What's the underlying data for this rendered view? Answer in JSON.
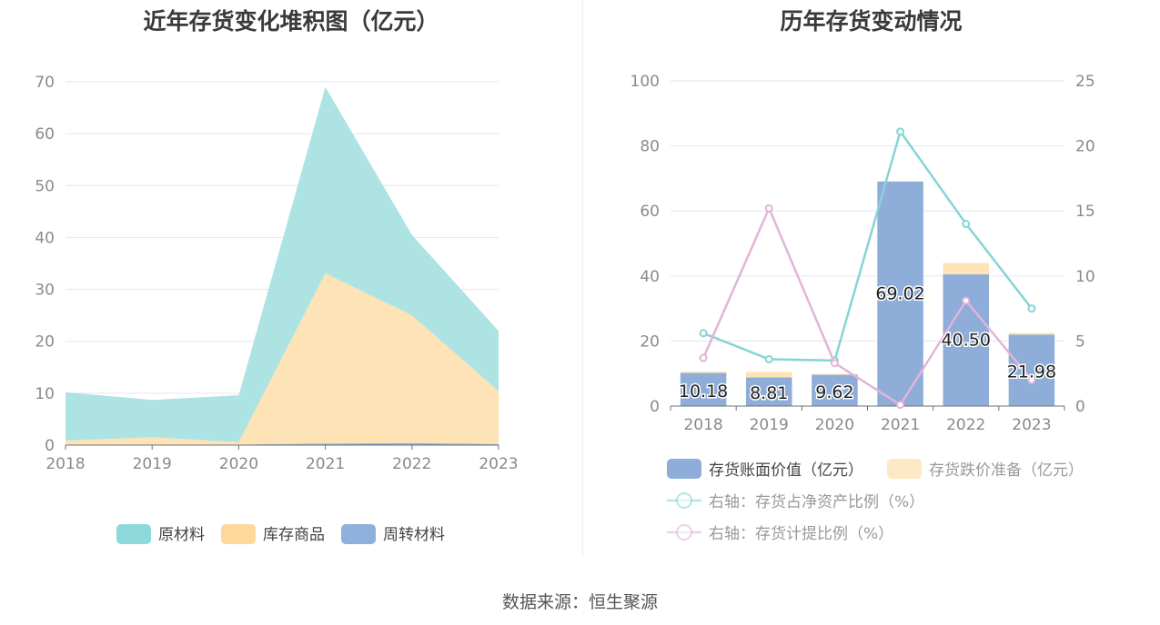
{
  "charts": {
    "left_title": "近年存货变化堆积图（亿元）",
    "right_title": "历年存货变动情况"
  },
  "source": "数据来源：恒生聚源",
  "chart_data": [
    {
      "type": "area",
      "title": "近年存货变化堆积图（亿元）",
      "stacked": true,
      "categories": [
        "2018",
        "2019",
        "2020",
        "2021",
        "2022",
        "2023"
      ],
      "ylim": [
        0,
        70
      ],
      "yticks": [
        0,
        10,
        20,
        30,
        40,
        50,
        60,
        70
      ],
      "grid": true,
      "legend_position": "bottom",
      "series": [
        {
          "name": "周转材料",
          "color": "#8fb0dc",
          "values": [
            0.1,
            0.1,
            0.1,
            0.3,
            0.4,
            0.2
          ]
        },
        {
          "name": "库存商品",
          "color": "#fde3b5",
          "values": [
            0.8,
            1.4,
            0.5,
            32.8,
            24.6,
            10.2
          ]
        },
        {
          "name": "原材料",
          "color": "#aee3e4",
          "values": [
            9.3,
            7.2,
            9.0,
            35.9,
            15.5,
            11.6
          ]
        }
      ],
      "legend": [
        "原材料",
        "库存商品",
        "周转材料"
      ],
      "legend_colors": [
        "#8dd8da",
        "#fdd89a",
        "#8fb0dc"
      ]
    },
    {
      "type": "bar",
      "title": "历年存货变动情况",
      "categories": [
        "2018",
        "2019",
        "2020",
        "2021",
        "2022",
        "2023"
      ],
      "ylim": [
        0,
        100
      ],
      "yticks": [
        0,
        20,
        40,
        60,
        80,
        100
      ],
      "y2lim": [
        0,
        25
      ],
      "y2ticks": [
        0,
        5,
        10,
        15,
        20,
        25
      ],
      "grid": true,
      "legend_position": "bottom",
      "series": [
        {
          "name": "存货账面价值（亿元）",
          "kind": "bar",
          "axis": "left",
          "color": "#8eadd9",
          "values": [
            10.18,
            8.81,
            9.62,
            69.02,
            40.5,
            21.98
          ],
          "labels": [
            "10.18",
            "8.81",
            "9.62",
            "69.02",
            "40.50",
            "21.98"
          ]
        },
        {
          "name": "存货跌价准备（亿元）",
          "kind": "bar",
          "axis": "left",
          "color": "#fde3b5",
          "values": [
            0.4,
            1.7,
            0.3,
            0.2,
            3.5,
            0.5
          ]
        },
        {
          "name": "右轴：存货占净资产比例（%）",
          "kind": "line",
          "axis": "right",
          "color": "#86d4d6",
          "values": [
            5.6,
            3.6,
            3.5,
            21.1,
            14.0,
            7.5
          ]
        },
        {
          "name": "右轴：存货计提比例（%）",
          "kind": "line",
          "axis": "right",
          "color": "#e2b4d8",
          "values": [
            3.7,
            15.2,
            3.3,
            0.1,
            8.1,
            2.0
          ]
        }
      ]
    }
  ]
}
